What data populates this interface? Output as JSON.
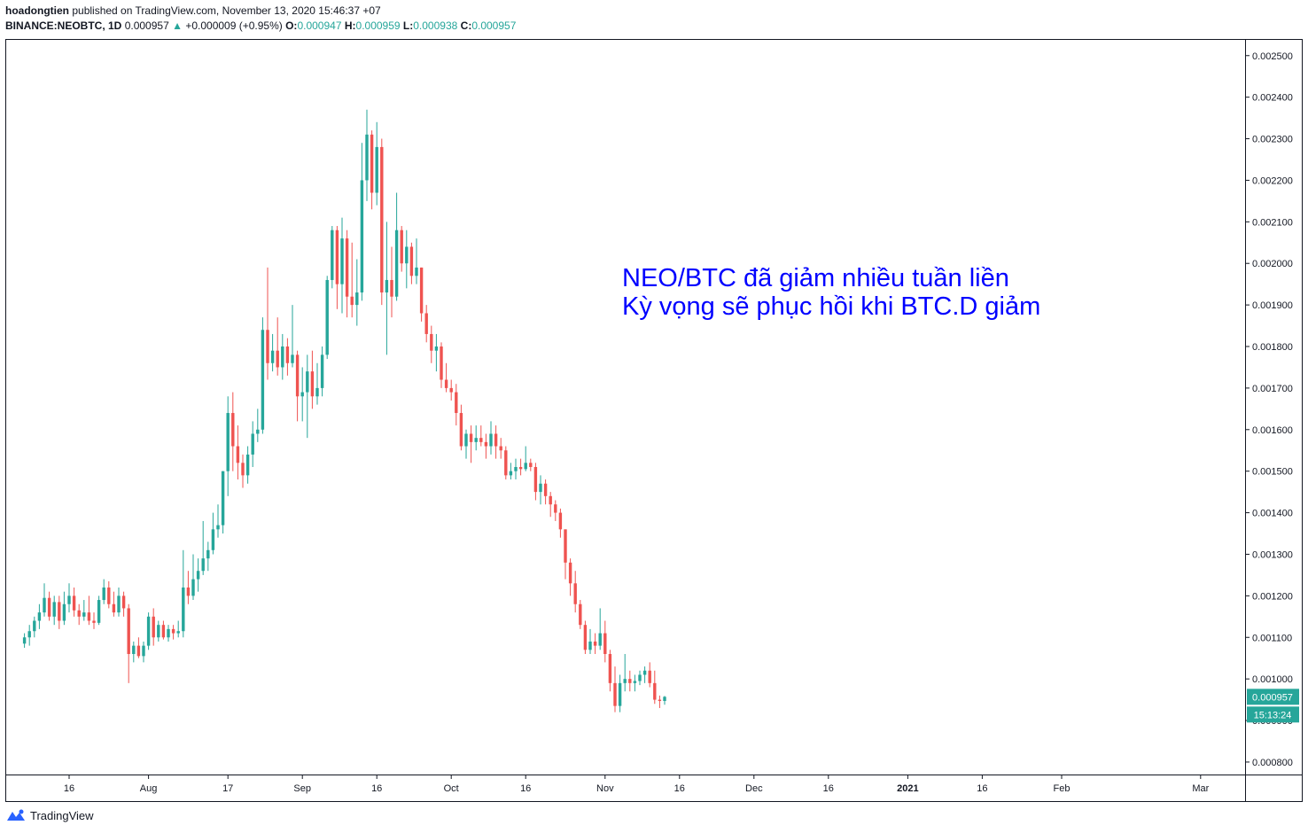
{
  "header": {
    "author": "hoadongtien",
    "published": "published on TradingView.com, November 13, 2020 15:46:37 +07",
    "symbol": "BINANCE:NEOBTC, 1D",
    "last": "0.000957",
    "change_arrow": "▲",
    "change": "+0.000009 (+0.95%)",
    "o_label": "O:",
    "o_value": "0.000947",
    "h_label": "H:",
    "h_value": "0.000959",
    "l_label": "L:",
    "l_value": "0.000938",
    "c_label": "C:",
    "c_value": "0.000957"
  },
  "footer": {
    "brand": "TradingView",
    "logo_icon": "tradingview-logo-icon"
  },
  "colors": {
    "up": "#26a69a",
    "down": "#ef5350",
    "annotation": "#0000ff",
    "axis": "#131722"
  },
  "chart_data": {
    "type": "candlestick",
    "ylim": [
      0.00077,
      0.00254
    ],
    "y_ticks": [
      "0.002500",
      "0.002400",
      "0.002300",
      "0.002200",
      "0.002100",
      "0.002000",
      "0.001900",
      "0.001800",
      "0.001700",
      "0.001600",
      "0.001500",
      "0.001400",
      "0.001300",
      "0.001200",
      "0.001100",
      "0.001000",
      "0.000900",
      "0.000800"
    ],
    "x_ticks": [
      {
        "label": "16",
        "date": "2020-07-16"
      },
      {
        "label": "Aug",
        "date": "2020-08-01"
      },
      {
        "label": "17",
        "date": "2020-08-17"
      },
      {
        "label": "Sep",
        "date": "2020-09-01"
      },
      {
        "label": "16",
        "date": "2020-09-16"
      },
      {
        "label": "Oct",
        "date": "2020-10-01"
      },
      {
        "label": "16",
        "date": "2020-10-16"
      },
      {
        "label": "Nov",
        "date": "2020-11-01"
      },
      {
        "label": "16",
        "date": "2020-11-16"
      },
      {
        "label": "Dec",
        "date": "2020-12-01"
      },
      {
        "label": "16",
        "date": "2020-12-16"
      },
      {
        "label": "2021",
        "date": "2021-01-01"
      },
      {
        "label": "16",
        "date": "2021-01-16"
      },
      {
        "label": "Feb",
        "date": "2021-02-01"
      },
      {
        "label": "Mar",
        "date": "2021-03-01"
      }
    ],
    "price_label": "0.000957",
    "countdown": "15:13:24",
    "annotation": [
      "NEO/BTC đã giảm nhiều tuần liền",
      "Kỳ vọng sẽ phục hồi khi BTC.D giảm"
    ],
    "candles": [
      {
        "date": "2020-07-07",
        "o": 0.001085,
        "h": 0.00111,
        "l": 0.001075,
        "c": 0.0011
      },
      {
        "date": "2020-07-08",
        "o": 0.0011,
        "h": 0.00113,
        "l": 0.00108,
        "c": 0.001115
      },
      {
        "date": "2020-07-09",
        "o": 0.001115,
        "h": 0.00115,
        "l": 0.0011,
        "c": 0.00114
      },
      {
        "date": "2020-07-10",
        "o": 0.00114,
        "h": 0.00118,
        "l": 0.00112,
        "c": 0.00116
      },
      {
        "date": "2020-07-11",
        "o": 0.00116,
        "h": 0.00123,
        "l": 0.00115,
        "c": 0.001195
      },
      {
        "date": "2020-07-12",
        "o": 0.001195,
        "h": 0.00121,
        "l": 0.00114,
        "c": 0.00115
      },
      {
        "date": "2020-07-13",
        "o": 0.00115,
        "h": 0.0012,
        "l": 0.00113,
        "c": 0.001185
      },
      {
        "date": "2020-07-14",
        "o": 0.001185,
        "h": 0.0012,
        "l": 0.00112,
        "c": 0.00114
      },
      {
        "date": "2020-07-15",
        "o": 0.00114,
        "h": 0.00121,
        "l": 0.00113,
        "c": 0.00118
      },
      {
        "date": "2020-07-16",
        "o": 0.00118,
        "h": 0.00123,
        "l": 0.00116,
        "c": 0.0012
      },
      {
        "date": "2020-07-17",
        "o": 0.0012,
        "h": 0.00122,
        "l": 0.00115,
        "c": 0.001165
      },
      {
        "date": "2020-07-18",
        "o": 0.001165,
        "h": 0.00118,
        "l": 0.00113,
        "c": 0.00115
      },
      {
        "date": "2020-07-19",
        "o": 0.00115,
        "h": 0.00119,
        "l": 0.00114,
        "c": 0.00116
      },
      {
        "date": "2020-07-20",
        "o": 0.00116,
        "h": 0.0012,
        "l": 0.00113,
        "c": 0.00114
      },
      {
        "date": "2020-07-21",
        "o": 0.00114,
        "h": 0.00116,
        "l": 0.00112,
        "c": 0.001135
      },
      {
        "date": "2020-07-22",
        "o": 0.001135,
        "h": 0.0012,
        "l": 0.00113,
        "c": 0.00119
      },
      {
        "date": "2020-07-23",
        "o": 0.00119,
        "h": 0.00124,
        "l": 0.00118,
        "c": 0.00122
      },
      {
        "date": "2020-07-24",
        "o": 0.00122,
        "h": 0.001235,
        "l": 0.00117,
        "c": 0.00118
      },
      {
        "date": "2020-07-25",
        "o": 0.00118,
        "h": 0.00121,
        "l": 0.00115,
        "c": 0.00116
      },
      {
        "date": "2020-07-26",
        "o": 0.00116,
        "h": 0.00122,
        "l": 0.00115,
        "c": 0.0012
      },
      {
        "date": "2020-07-27",
        "o": 0.0012,
        "h": 0.00121,
        "l": 0.00115,
        "c": 0.00117
      },
      {
        "date": "2020-07-28",
        "o": 0.00117,
        "h": 0.00118,
        "l": 0.00099,
        "c": 0.00106
      },
      {
        "date": "2020-07-29",
        "o": 0.00106,
        "h": 0.00109,
        "l": 0.00104,
        "c": 0.00108
      },
      {
        "date": "2020-07-30",
        "o": 0.00108,
        "h": 0.0011,
        "l": 0.00105,
        "c": 0.001055
      },
      {
        "date": "2020-07-31",
        "o": 0.001055,
        "h": 0.00109,
        "l": 0.00104,
        "c": 0.00108
      },
      {
        "date": "2020-08-01",
        "o": 0.00108,
        "h": 0.00116,
        "l": 0.00107,
        "c": 0.00115
      },
      {
        "date": "2020-08-02",
        "o": 0.00115,
        "h": 0.00117,
        "l": 0.00108,
        "c": 0.0011
      },
      {
        "date": "2020-08-03",
        "o": 0.0011,
        "h": 0.00114,
        "l": 0.00109,
        "c": 0.00113
      },
      {
        "date": "2020-08-04",
        "o": 0.00113,
        "h": 0.00114,
        "l": 0.001095,
        "c": 0.0011
      },
      {
        "date": "2020-08-05",
        "o": 0.0011,
        "h": 0.00113,
        "l": 0.00109,
        "c": 0.00112
      },
      {
        "date": "2020-08-06",
        "o": 0.00112,
        "h": 0.00113,
        "l": 0.001095,
        "c": 0.00111
      },
      {
        "date": "2020-08-07",
        "o": 0.00111,
        "h": 0.00114,
        "l": 0.0011,
        "c": 0.001115
      },
      {
        "date": "2020-08-08",
        "o": 0.001115,
        "h": 0.00131,
        "l": 0.0011,
        "c": 0.00122
      },
      {
        "date": "2020-08-09",
        "o": 0.00122,
        "h": 0.00126,
        "l": 0.00118,
        "c": 0.0012
      },
      {
        "date": "2020-08-10",
        "o": 0.0012,
        "h": 0.0013,
        "l": 0.00119,
        "c": 0.00124
      },
      {
        "date": "2020-08-11",
        "o": 0.00124,
        "h": 0.00129,
        "l": 0.00121,
        "c": 0.00126
      },
      {
        "date": "2020-08-12",
        "o": 0.00126,
        "h": 0.00138,
        "l": 0.00125,
        "c": 0.00129
      },
      {
        "date": "2020-08-13",
        "o": 0.00129,
        "h": 0.00133,
        "l": 0.00126,
        "c": 0.00131
      },
      {
        "date": "2020-08-14",
        "o": 0.00131,
        "h": 0.0014,
        "l": 0.0013,
        "c": 0.00136
      },
      {
        "date": "2020-08-15",
        "o": 0.00136,
        "h": 0.00142,
        "l": 0.00134,
        "c": 0.00137
      },
      {
        "date": "2020-08-16",
        "o": 0.00137,
        "h": 0.0015,
        "l": 0.00135,
        "c": 0.0015
      },
      {
        "date": "2020-08-17",
        "o": 0.0015,
        "h": 0.00168,
        "l": 0.00144,
        "c": 0.00164
      },
      {
        "date": "2020-08-18",
        "o": 0.00164,
        "h": 0.00169,
        "l": 0.0015,
        "c": 0.00156
      },
      {
        "date": "2020-08-19",
        "o": 0.00156,
        "h": 0.00161,
        "l": 0.00148,
        "c": 0.00152
      },
      {
        "date": "2020-08-20",
        "o": 0.00152,
        "h": 0.00154,
        "l": 0.00146,
        "c": 0.00149
      },
      {
        "date": "2020-08-21",
        "o": 0.00149,
        "h": 0.00156,
        "l": 0.00147,
        "c": 0.00154
      },
      {
        "date": "2020-08-22",
        "o": 0.00154,
        "h": 0.00162,
        "l": 0.00151,
        "c": 0.00159
      },
      {
        "date": "2020-08-23",
        "o": 0.00159,
        "h": 0.00165,
        "l": 0.00157,
        "c": 0.0016
      },
      {
        "date": "2020-08-24",
        "o": 0.0016,
        "h": 0.00187,
        "l": 0.00159,
        "c": 0.00184
      },
      {
        "date": "2020-08-25",
        "o": 0.00184,
        "h": 0.00199,
        "l": 0.00172,
        "c": 0.00176
      },
      {
        "date": "2020-08-26",
        "o": 0.00176,
        "h": 0.00183,
        "l": 0.00174,
        "c": 0.00179
      },
      {
        "date": "2020-08-27",
        "o": 0.00179,
        "h": 0.00187,
        "l": 0.00173,
        "c": 0.00175
      },
      {
        "date": "2020-08-28",
        "o": 0.00175,
        "h": 0.00183,
        "l": 0.00172,
        "c": 0.0018
      },
      {
        "date": "2020-08-29",
        "o": 0.0018,
        "h": 0.00182,
        "l": 0.00173,
        "c": 0.00176
      },
      {
        "date": "2020-08-30",
        "o": 0.00176,
        "h": 0.0019,
        "l": 0.00175,
        "c": 0.00178
      },
      {
        "date": "2020-08-31",
        "o": 0.00178,
        "h": 0.00179,
        "l": 0.00162,
        "c": 0.00168
      },
      {
        "date": "2020-09-01",
        "o": 0.00168,
        "h": 0.00175,
        "l": 0.00162,
        "c": 0.00169
      },
      {
        "date": "2020-09-02",
        "o": 0.00169,
        "h": 0.00178,
        "l": 0.00158,
        "c": 0.00174
      },
      {
        "date": "2020-09-03",
        "o": 0.00174,
        "h": 0.00179,
        "l": 0.00165,
        "c": 0.00168
      },
      {
        "date": "2020-09-04",
        "o": 0.00168,
        "h": 0.00176,
        "l": 0.00166,
        "c": 0.0017
      },
      {
        "date": "2020-09-05",
        "o": 0.0017,
        "h": 0.0018,
        "l": 0.00168,
        "c": 0.00178
      },
      {
        "date": "2020-09-06",
        "o": 0.00178,
        "h": 0.00197,
        "l": 0.00177,
        "c": 0.00196
      },
      {
        "date": "2020-09-07",
        "o": 0.00196,
        "h": 0.00209,
        "l": 0.00194,
        "c": 0.00208
      },
      {
        "date": "2020-09-08",
        "o": 0.00208,
        "h": 0.00209,
        "l": 0.00189,
        "c": 0.00195
      },
      {
        "date": "2020-09-09",
        "o": 0.00195,
        "h": 0.00211,
        "l": 0.00188,
        "c": 0.00206
      },
      {
        "date": "2020-09-10",
        "o": 0.00206,
        "h": 0.00208,
        "l": 0.00187,
        "c": 0.00192
      },
      {
        "date": "2020-09-11",
        "o": 0.00192,
        "h": 0.00205,
        "l": 0.00187,
        "c": 0.0019
      },
      {
        "date": "2020-09-12",
        "o": 0.0019,
        "h": 0.00201,
        "l": 0.00185,
        "c": 0.00193
      },
      {
        "date": "2020-09-13",
        "o": 0.00193,
        "h": 0.00229,
        "l": 0.00191,
        "c": 0.0022
      },
      {
        "date": "2020-09-14",
        "o": 0.0022,
        "h": 0.00237,
        "l": 0.00215,
        "c": 0.00231
      },
      {
        "date": "2020-09-15",
        "o": 0.00231,
        "h": 0.00232,
        "l": 0.00213,
        "c": 0.00217
      },
      {
        "date": "2020-09-16",
        "o": 0.00217,
        "h": 0.00234,
        "l": 0.00214,
        "c": 0.00228
      },
      {
        "date": "2020-09-17",
        "o": 0.00228,
        "h": 0.0023,
        "l": 0.0019,
        "c": 0.00193
      },
      {
        "date": "2020-09-18",
        "o": 0.00193,
        "h": 0.0021,
        "l": 0.00178,
        "c": 0.00196
      },
      {
        "date": "2020-09-19",
        "o": 0.00196,
        "h": 0.00204,
        "l": 0.00187,
        "c": 0.00192
      },
      {
        "date": "2020-09-20",
        "o": 0.00192,
        "h": 0.00217,
        "l": 0.00191,
        "c": 0.00208
      },
      {
        "date": "2020-09-21",
        "o": 0.00208,
        "h": 0.00209,
        "l": 0.00198,
        "c": 0.002
      },
      {
        "date": "2020-09-22",
        "o": 0.002,
        "h": 0.00208,
        "l": 0.00194,
        "c": 0.00204
      },
      {
        "date": "2020-09-23",
        "o": 0.00204,
        "h": 0.00205,
        "l": 0.00195,
        "c": 0.00197
      },
      {
        "date": "2020-09-24",
        "o": 0.00197,
        "h": 0.00206,
        "l": 0.00195,
        "c": 0.00199
      },
      {
        "date": "2020-09-25",
        "o": 0.00199,
        "h": 0.00199,
        "l": 0.00186,
        "c": 0.00188
      },
      {
        "date": "2020-09-26",
        "o": 0.00188,
        "h": 0.0019,
        "l": 0.00181,
        "c": 0.00183
      },
      {
        "date": "2020-09-27",
        "o": 0.00183,
        "h": 0.00185,
        "l": 0.00176,
        "c": 0.00179
      },
      {
        "date": "2020-09-28",
        "o": 0.00179,
        "h": 0.00183,
        "l": 0.00174,
        "c": 0.0018
      },
      {
        "date": "2020-09-29",
        "o": 0.0018,
        "h": 0.00181,
        "l": 0.0017,
        "c": 0.00172
      },
      {
        "date": "2020-09-30",
        "o": 0.00172,
        "h": 0.00176,
        "l": 0.00169,
        "c": 0.0017
      },
      {
        "date": "2020-10-01",
        "o": 0.0017,
        "h": 0.00172,
        "l": 0.00167,
        "c": 0.00169
      },
      {
        "date": "2020-10-02",
        "o": 0.00169,
        "h": 0.00171,
        "l": 0.00161,
        "c": 0.00164
      },
      {
        "date": "2020-10-03",
        "o": 0.00164,
        "h": 0.00166,
        "l": 0.00155,
        "c": 0.00156
      },
      {
        "date": "2020-10-04",
        "o": 0.00156,
        "h": 0.0016,
        "l": 0.00153,
        "c": 0.00159
      },
      {
        "date": "2020-10-05",
        "o": 0.00159,
        "h": 0.00161,
        "l": 0.00152,
        "c": 0.00157
      },
      {
        "date": "2020-10-06",
        "o": 0.00157,
        "h": 0.00161,
        "l": 0.00155,
        "c": 0.00158
      },
      {
        "date": "2020-10-07",
        "o": 0.00158,
        "h": 0.00161,
        "l": 0.00156,
        "c": 0.00157
      },
      {
        "date": "2020-10-08",
        "o": 0.00157,
        "h": 0.00159,
        "l": 0.00153,
        "c": 0.00156
      },
      {
        "date": "2020-10-09",
        "o": 0.00156,
        "h": 0.00162,
        "l": 0.00154,
        "c": 0.00159
      },
      {
        "date": "2020-10-10",
        "o": 0.00159,
        "h": 0.00161,
        "l": 0.00153,
        "c": 0.00156
      },
      {
        "date": "2020-10-11",
        "o": 0.00156,
        "h": 0.00158,
        "l": 0.00153,
        "c": 0.00155
      },
      {
        "date": "2020-10-12",
        "o": 0.00155,
        "h": 0.00156,
        "l": 0.00148,
        "c": 0.00149
      },
      {
        "date": "2020-10-13",
        "o": 0.00149,
        "h": 0.00152,
        "l": 0.00148,
        "c": 0.0015
      },
      {
        "date": "2020-10-14",
        "o": 0.0015,
        "h": 0.00153,
        "l": 0.00148,
        "c": 0.00151
      },
      {
        "date": "2020-10-15",
        "o": 0.00151,
        "h": 0.00153,
        "l": 0.00149,
        "c": 0.001505
      },
      {
        "date": "2020-10-16",
        "o": 0.001505,
        "h": 0.00156,
        "l": 0.0015,
        "c": 0.00152
      },
      {
        "date": "2020-10-17",
        "o": 0.00152,
        "h": 0.00153,
        "l": 0.0015,
        "c": 0.00151
      },
      {
        "date": "2020-10-18",
        "o": 0.00151,
        "h": 0.00152,
        "l": 0.00143,
        "c": 0.00145
      },
      {
        "date": "2020-10-19",
        "o": 0.00145,
        "h": 0.00149,
        "l": 0.00142,
        "c": 0.00147
      },
      {
        "date": "2020-10-20",
        "o": 0.00147,
        "h": 0.00148,
        "l": 0.00142,
        "c": 0.00144
      },
      {
        "date": "2020-10-21",
        "o": 0.00144,
        "h": 0.00145,
        "l": 0.00139,
        "c": 0.00142
      },
      {
        "date": "2020-10-22",
        "o": 0.00142,
        "h": 0.00143,
        "l": 0.00138,
        "c": 0.0014
      },
      {
        "date": "2020-10-23",
        "o": 0.0014,
        "h": 0.00141,
        "l": 0.00134,
        "c": 0.00136
      },
      {
        "date": "2020-10-24",
        "o": 0.00136,
        "h": 0.00136,
        "l": 0.00124,
        "c": 0.00128
      },
      {
        "date": "2020-10-25",
        "o": 0.00128,
        "h": 0.00129,
        "l": 0.0012,
        "c": 0.00123
      },
      {
        "date": "2020-10-26",
        "o": 0.00123,
        "h": 0.00126,
        "l": 0.00116,
        "c": 0.00118
      },
      {
        "date": "2020-10-27",
        "o": 0.00118,
        "h": 0.00119,
        "l": 0.00112,
        "c": 0.00113
      },
      {
        "date": "2020-10-28",
        "o": 0.00113,
        "h": 0.00114,
        "l": 0.00106,
        "c": 0.00107
      },
      {
        "date": "2020-10-29",
        "o": 0.00107,
        "h": 0.00112,
        "l": 0.00106,
        "c": 0.00109
      },
      {
        "date": "2020-10-30",
        "o": 0.00109,
        "h": 0.00111,
        "l": 0.00106,
        "c": 0.00108
      },
      {
        "date": "2020-10-31",
        "o": 0.00108,
        "h": 0.00117,
        "l": 0.00107,
        "c": 0.00111
      },
      {
        "date": "2020-11-01",
        "o": 0.00111,
        "h": 0.00114,
        "l": 0.00104,
        "c": 0.00106
      },
      {
        "date": "2020-11-02",
        "o": 0.00106,
        "h": 0.00107,
        "l": 0.00097,
        "c": 0.00099
      },
      {
        "date": "2020-11-03",
        "o": 0.00099,
        "h": 0.00103,
        "l": 0.00092,
        "c": 0.000935
      },
      {
        "date": "2020-11-04",
        "o": 0.000935,
        "h": 0.00101,
        "l": 0.00092,
        "c": 0.00099
      },
      {
        "date": "2020-11-05",
        "o": 0.00099,
        "h": 0.00106,
        "l": 0.00097,
        "c": 0.001
      },
      {
        "date": "2020-11-06",
        "o": 0.001,
        "h": 0.00102,
        "l": 0.00097,
        "c": 0.00099
      },
      {
        "date": "2020-11-07",
        "o": 0.00099,
        "h": 0.00101,
        "l": 0.00097,
        "c": 0.000995
      },
      {
        "date": "2020-11-08",
        "o": 0.000995,
        "h": 0.00102,
        "l": 0.000985,
        "c": 0.00101
      },
      {
        "date": "2020-11-09",
        "o": 0.00101,
        "h": 0.00103,
        "l": 0.00099,
        "c": 0.00102
      },
      {
        "date": "2020-11-10",
        "o": 0.00102,
        "h": 0.00104,
        "l": 0.00098,
        "c": 0.00099
      },
      {
        "date": "2020-11-11",
        "o": 0.00099,
        "h": 0.00102,
        "l": 0.00094,
        "c": 0.00095
      },
      {
        "date": "2020-11-12",
        "o": 0.00095,
        "h": 0.00096,
        "l": 0.00093,
        "c": 0.000947
      },
      {
        "date": "2020-11-13",
        "o": 0.000947,
        "h": 0.000959,
        "l": 0.000938,
        "c": 0.000957
      }
    ]
  }
}
